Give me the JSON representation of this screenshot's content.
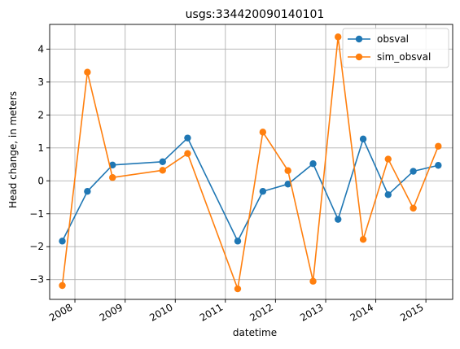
{
  "chart_data": {
    "type": "line",
    "title": "usgs:334420090140101",
    "xlabel": "datetime",
    "ylabel": "Head change, in meters",
    "x_ticks": [
      "2008",
      "2009",
      "2010",
      "2011",
      "2012",
      "2013",
      "2014",
      "2015"
    ],
    "y_ticks": [
      -3,
      -2,
      -1,
      0,
      1,
      2,
      3,
      4
    ],
    "xlim": [
      "2007-07-01",
      "2015-07-15"
    ],
    "ylim": [
      -3.6,
      4.75
    ],
    "grid": true,
    "legend_position": "top-right",
    "x": [
      "2007-10-01",
      "2008-04-01",
      "2008-10-01",
      "2009-10-01",
      "2010-04-01",
      "2011-04-01",
      "2011-10-01",
      "2012-04-01",
      "2012-10-01",
      "2013-04-01",
      "2013-10-01",
      "2014-04-01",
      "2014-10-01",
      "2015-04-01"
    ],
    "series": [
      {
        "name": "obsval",
        "color": "#1f77b4",
        "values": [
          -1.83,
          -0.32,
          0.48,
          0.58,
          1.3,
          -1.83,
          -0.32,
          -0.1,
          0.52,
          -1.17,
          1.27,
          -0.42,
          0.29,
          0.47
        ]
      },
      {
        "name": "sim_obsval",
        "color": "#ff7f0e",
        "values": [
          -3.18,
          3.3,
          0.1,
          0.32,
          0.83,
          -3.28,
          1.48,
          0.31,
          -3.05,
          4.37,
          -1.78,
          0.66,
          -0.83,
          1.05
        ]
      }
    ]
  }
}
